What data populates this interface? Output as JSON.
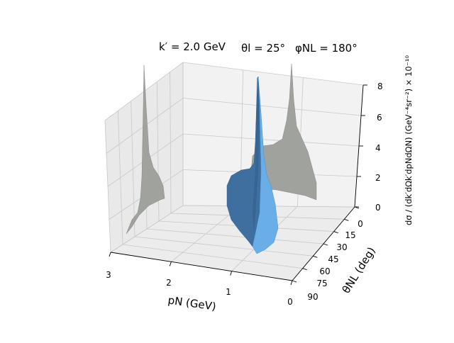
{
  "chart_data": {
    "type": "surface3d",
    "title": {
      "kprime": "k′ = 2.0 GeV",
      "theta_l": "θl = 25°",
      "phi_n": "φNL = 180°"
    },
    "xlabel": "pN (GeV)",
    "ylabel": "θNL (deg)",
    "zlabel": "dσ / (dk′dΩk′dpNdΩN) (GeV⁻⁴sr⁻²) × 10⁻¹⁰",
    "x_ticks": [
      "3",
      "2",
      "1",
      "0"
    ],
    "y_ticks": [
      "0",
      "15",
      "30",
      "45",
      "60",
      "75",
      "90"
    ],
    "z_ticks": [
      "0",
      "2",
      "4",
      "6",
      "8"
    ],
    "xlim": [
      0,
      3
    ],
    "ylim": [
      0,
      90
    ],
    "zlim": [
      0,
      8
    ],
    "grid": true,
    "colors": {
      "surface": "#5b9bd5",
      "surface_dark": "#2f5f8f",
      "surface_light": "#7ab8f0",
      "projection": "#a0a29e",
      "pane": "#f2f2f2"
    },
    "peak": {
      "pN": 0.75,
      "thetaNL": 15,
      "value": 8
    }
  }
}
